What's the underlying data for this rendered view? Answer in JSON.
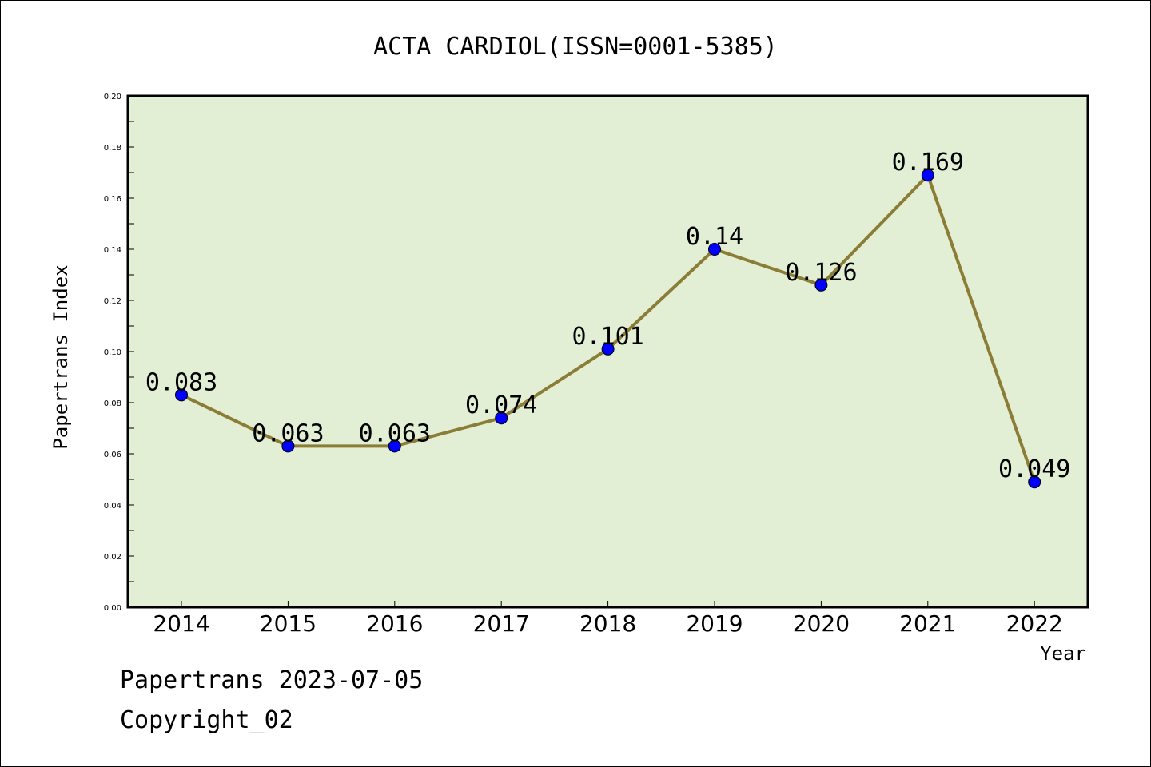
{
  "chart_data": {
    "type": "line",
    "title": "ACTA CARDIOL(ISSN=0001-5385)",
    "xlabel": "Year",
    "ylabel": "Papertrans Index",
    "categories": [
      "2014",
      "2015",
      "2016",
      "2017",
      "2018",
      "2019",
      "2020",
      "2021",
      "2022"
    ],
    "series": [
      {
        "values": [
          0.083,
          0.063,
          0.063,
          0.074,
          0.101,
          0.14,
          0.126,
          0.169,
          0.049
        ]
      }
    ],
    "data_labels": [
      "0.083",
      "0.063",
      "0.063",
      "0.074",
      "0.101",
      "0.14",
      "0.126",
      "0.169",
      "0.049"
    ],
    "ylim": [
      0,
      0.2
    ],
    "yticks": [
      "0.00",
      "0.02",
      "0.04",
      "0.06",
      "0.08",
      "0.10",
      "0.12",
      "0.14",
      "0.16",
      "0.18",
      "0.20"
    ],
    "grid": false,
    "colors": {
      "plot_background": "#e2efd5",
      "line": "#8b7d36",
      "marker": "#0000ff"
    }
  },
  "footer": {
    "line1": "Papertrans 2023-07-05",
    "line2": "Copyright_02"
  }
}
